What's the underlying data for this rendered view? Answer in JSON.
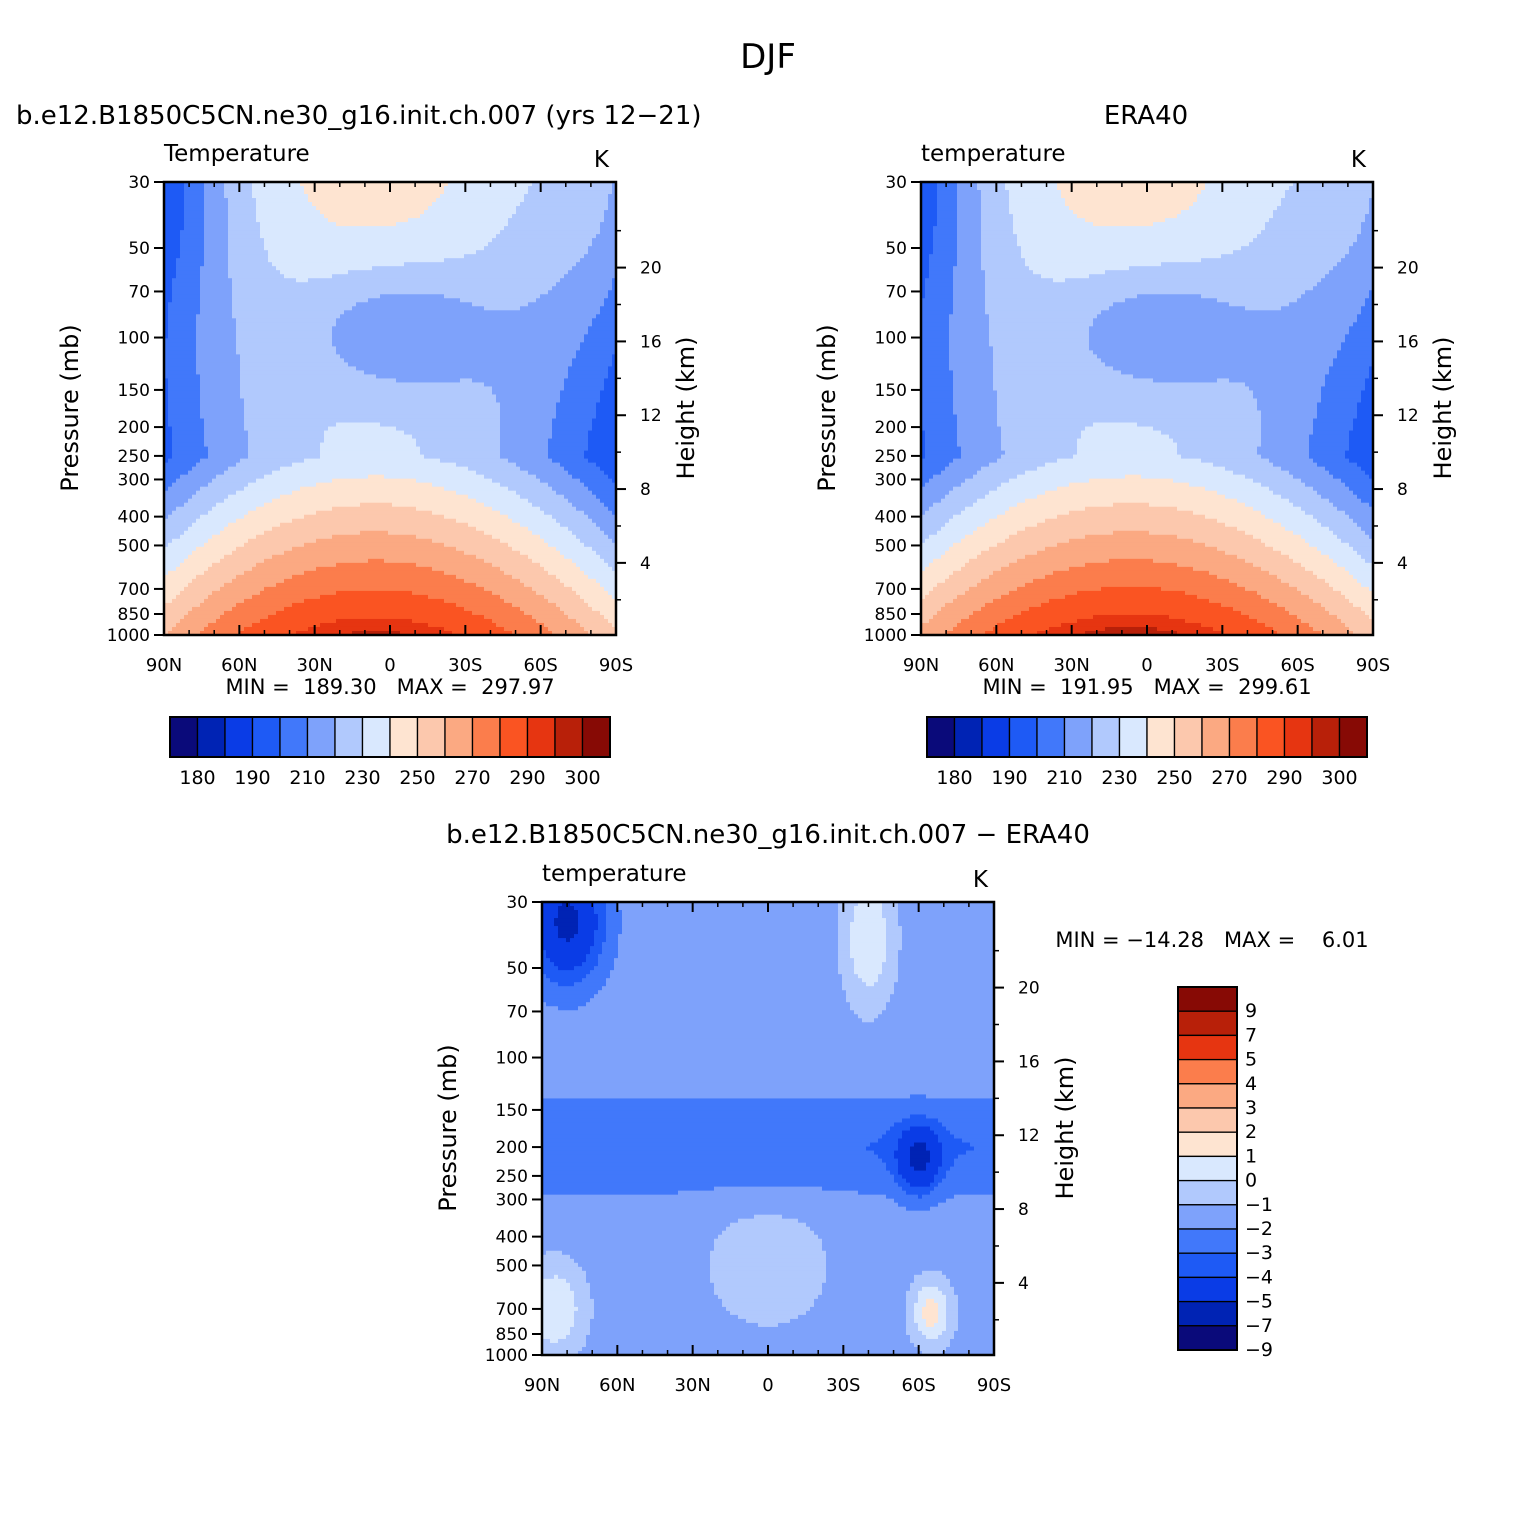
{
  "figure": {
    "title": "DJF"
  },
  "colors": {
    "abs_palette": [
      "#0a0a7a",
      "#0023b4",
      "#0a3ce6",
      "#1e5af5",
      "#4178fa",
      "#7ea2fb",
      "#b1c9fd",
      "#d9e8fe",
      "#fee4d1",
      "#fcc8ad",
      "#fba982",
      "#fb7d4c",
      "#fa5422",
      "#e63511",
      "#b82009",
      "#870a05"
    ],
    "diff_palette": [
      "#0a0a7a",
      "#0023b4",
      "#0a3ce6",
      "#1e5af5",
      "#4178fa",
      "#7ea2fb",
      "#b1c9fd",
      "#d9e8fe",
      "#fee4d1",
      "#fcc8ad",
      "#fba982",
      "#fb7d4c",
      "#e63511",
      "#b82009",
      "#870a05"
    ]
  },
  "chart_data": [
    {
      "type": "heatmap",
      "title": "b.e12.B1850C5CN.ne30_g16.init.ch.007 (yrs 12−21)",
      "subtitle": "Temperature",
      "units": "K",
      "xlabel": "",
      "ylabel": "Pressure (mb)",
      "y2label": "Height (km)",
      "x_ticks": [
        "90N",
        "60N",
        "30N",
        "0",
        "30S",
        "60S",
        "90S"
      ],
      "y_ticks": [
        30,
        50,
        70,
        100,
        150,
        200,
        250,
        300,
        400,
        500,
        700,
        850,
        1000
      ],
      "y2_ticks": [
        20,
        16,
        12,
        8,
        4
      ],
      "min_max": "MIN =  189.30   MAX =  297.97",
      "min": 189.3,
      "max": 297.97,
      "levels": [
        180,
        185,
        190,
        200,
        210,
        220,
        230,
        240,
        250,
        260,
        270,
        280,
        290,
        295,
        300
      ],
      "colorbar_labels": [
        "180",
        "190",
        "210",
        "230",
        "250",
        "270",
        "290",
        "300"
      ],
      "surface_max": 297.0
    },
    {
      "type": "heatmap",
      "title": "ERA40",
      "subtitle": "temperature",
      "units": "K",
      "xlabel": "",
      "ylabel": "Pressure (mb)",
      "y2label": "Height (km)",
      "x_ticks": [
        "90N",
        "60N",
        "30N",
        "0",
        "30S",
        "60S",
        "90S"
      ],
      "y_ticks": [
        30,
        50,
        70,
        100,
        150,
        200,
        250,
        300,
        400,
        500,
        700,
        850,
        1000
      ],
      "y2_ticks": [
        20,
        16,
        12,
        8,
        4
      ],
      "min_max": "MIN =  191.95   MAX =  299.61",
      "min": 191.95,
      "max": 299.61,
      "levels": [
        180,
        185,
        190,
        200,
        210,
        220,
        230,
        240,
        250,
        260,
        270,
        280,
        290,
        295,
        300
      ],
      "colorbar_labels": [
        "180",
        "190",
        "210",
        "230",
        "250",
        "270",
        "290",
        "300"
      ],
      "surface_max": 299.0
    },
    {
      "type": "heatmap",
      "title": "b.e12.B1850C5CN.ne30_g16.init.ch.007 − ERA40",
      "subtitle": "temperature",
      "units": "K",
      "xlabel": "",
      "ylabel": "Pressure (mb)",
      "y2label": "Height (km)",
      "x_ticks": [
        "90N",
        "60N",
        "30N",
        "0",
        "30S",
        "60S",
        "90S"
      ],
      "y_ticks": [
        30,
        50,
        70,
        100,
        150,
        200,
        250,
        300,
        400,
        500,
        700,
        850,
        1000
      ],
      "y2_ticks": [
        20,
        16,
        12,
        8,
        4
      ],
      "min_max": "MIN = −14.28   MAX =    6.01",
      "min": -14.28,
      "max": 6.01,
      "levels": [
        -9,
        -7,
        -5,
        -4,
        -3,
        -2,
        -1,
        0,
        1,
        2,
        3,
        4,
        5,
        7,
        9
      ],
      "colorbar_labels": [
        "9",
        "7",
        "5",
        "4",
        "3",
        "2",
        "1",
        "0",
        "−1",
        "−2",
        "−3",
        "−4",
        "−5",
        "−7",
        "−9"
      ]
    }
  ]
}
